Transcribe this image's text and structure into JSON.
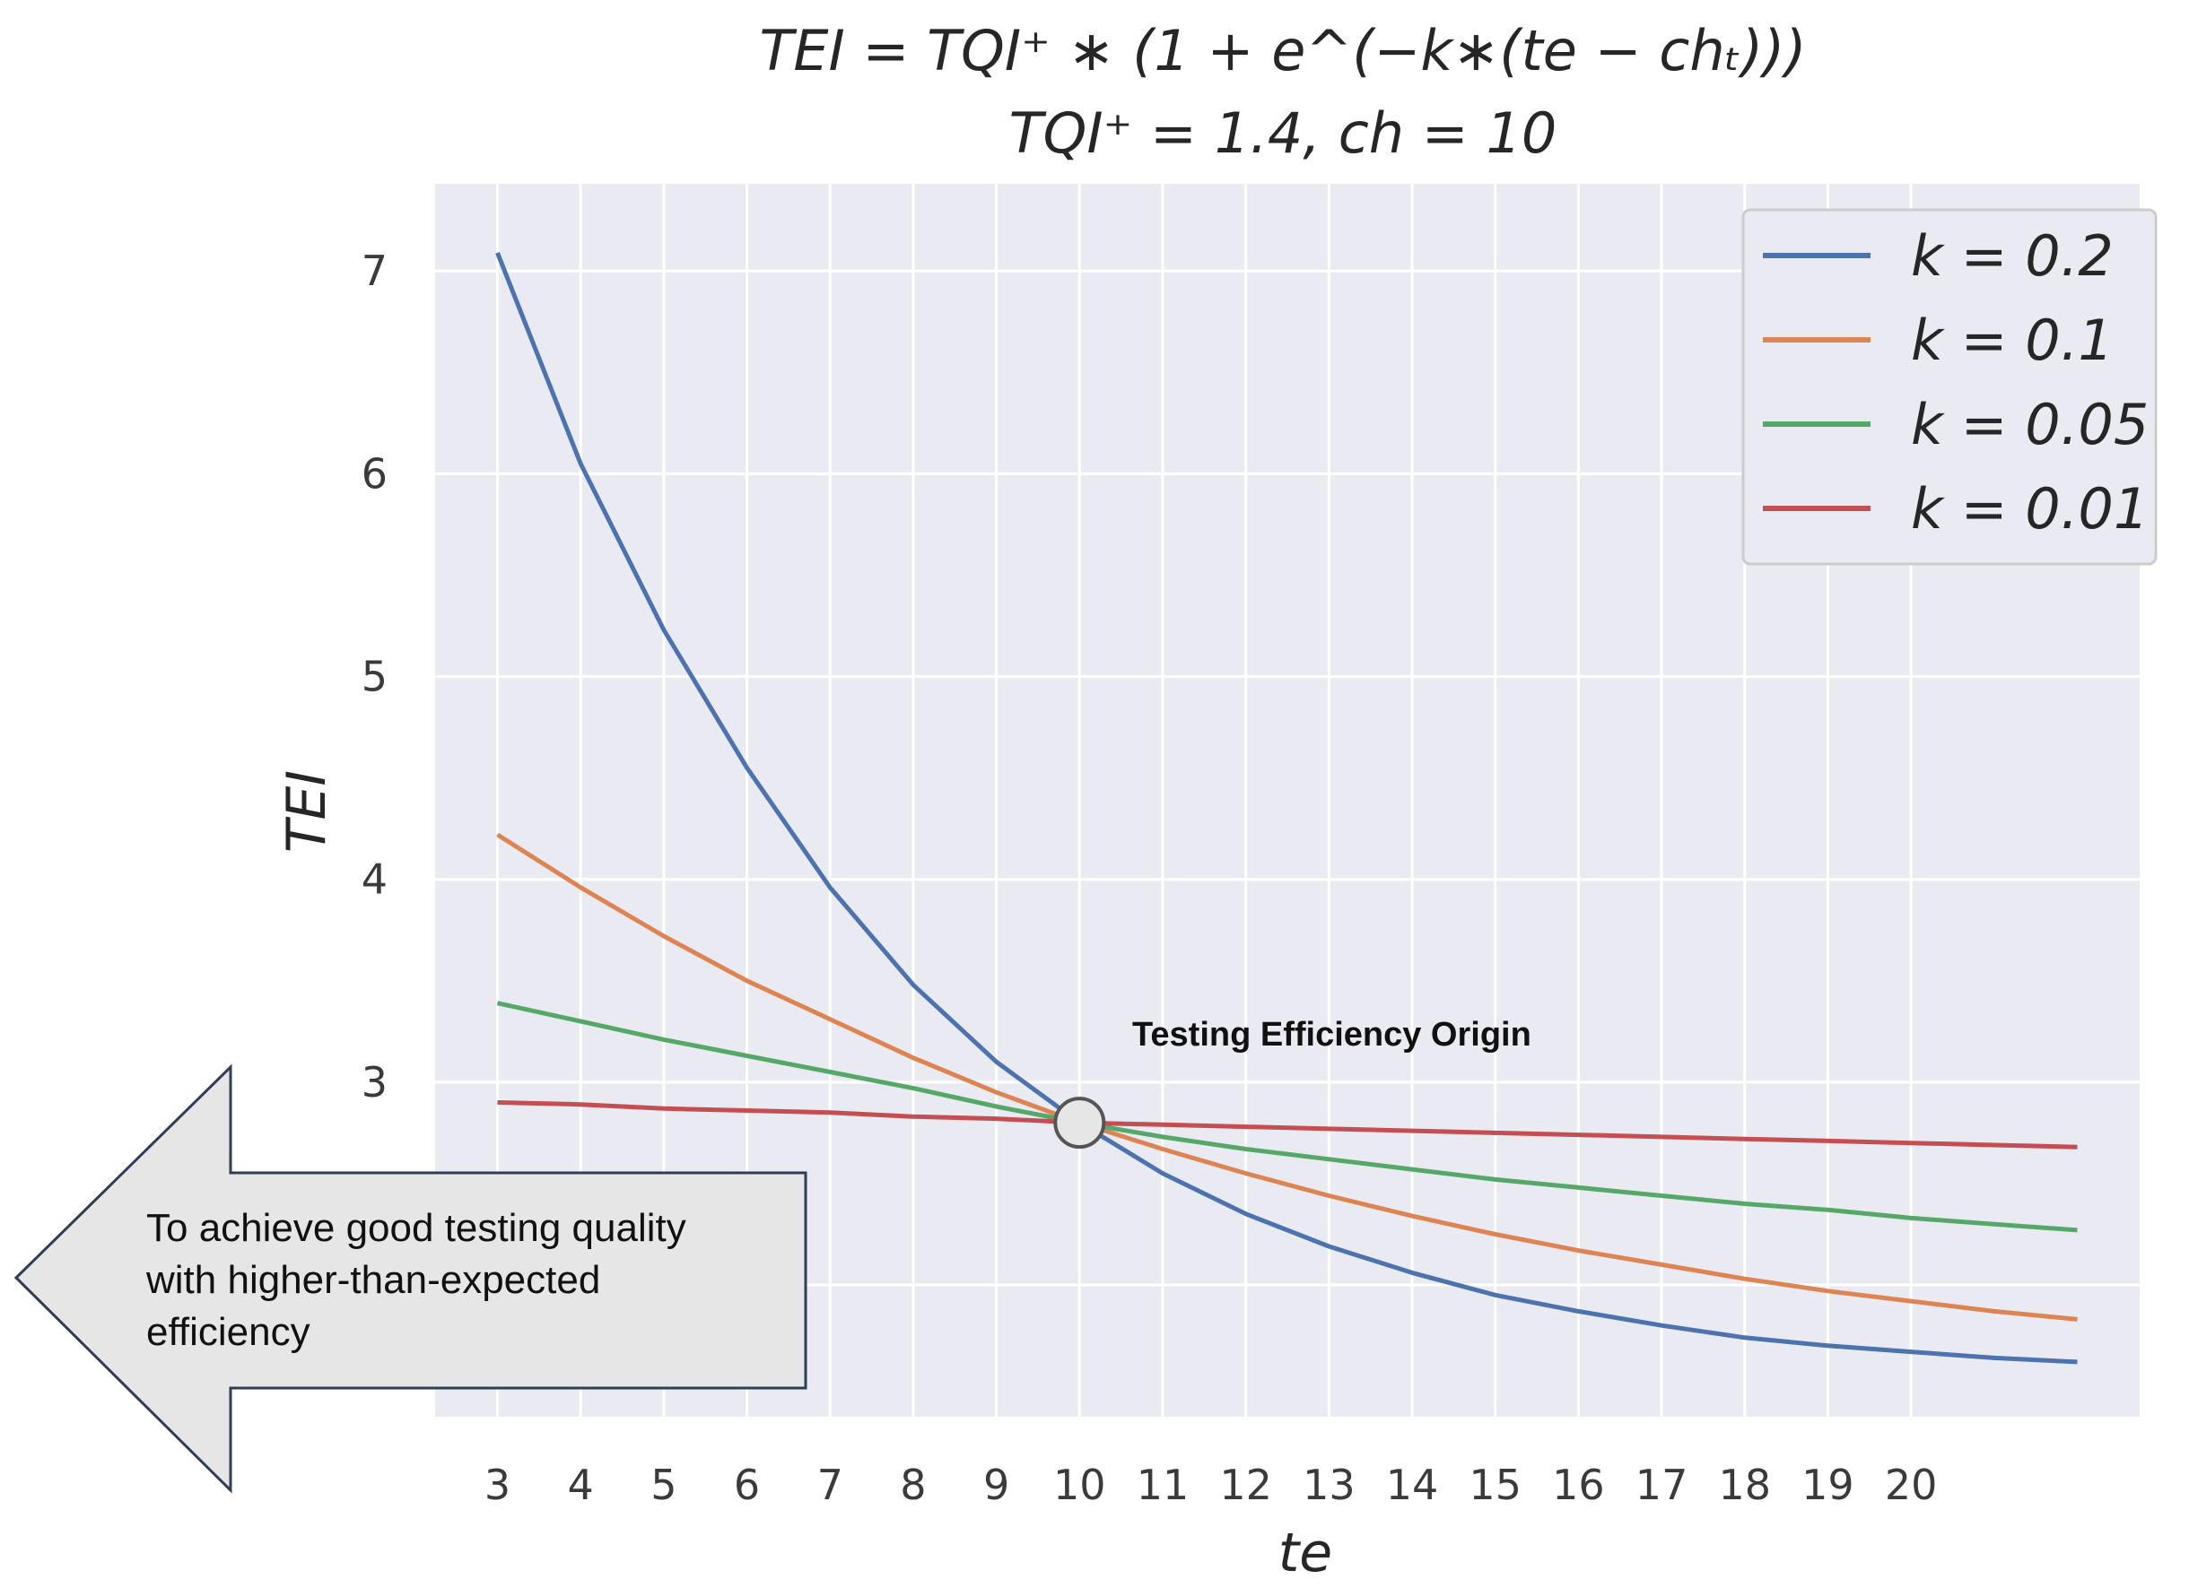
{
  "chart_data": {
    "type": "line",
    "title_line1": "TEI = TQI⁺ ∗ (1 + e^(−k∗(te − chₜ)))",
    "title_line2": "TQI⁺ = 1.4, ch = 10",
    "xlabel": "te",
    "ylabel": "TEI",
    "x_ticks": [
      3,
      4,
      5,
      6,
      7,
      8,
      9,
      10,
      11,
      12,
      13,
      14,
      15,
      16,
      17,
      18,
      19,
      20
    ],
    "y_ticks": [
      3,
      4,
      5,
      6,
      7
    ],
    "xlim": [
      2.25,
      22.75
    ],
    "ylim": [
      1.35,
      7.43
    ],
    "x": [
      3,
      4,
      5,
      6,
      7,
      8,
      9,
      10,
      11,
      12,
      13,
      14,
      15,
      16,
      17,
      18,
      19,
      20,
      21,
      22
    ],
    "series": [
      {
        "name": "k = 0.2",
        "color": "#4C72B0",
        "values": [
          7.09,
          6.05,
          5.23,
          4.55,
          3.96,
          3.48,
          3.1,
          2.8,
          2.55,
          2.35,
          2.19,
          2.06,
          1.95,
          1.87,
          1.8,
          1.74,
          1.7,
          1.67,
          1.64,
          1.62
        ]
      },
      {
        "name": "k = 0.1",
        "color": "#DD8452",
        "values": [
          4.22,
          3.96,
          3.72,
          3.5,
          3.31,
          3.12,
          2.95,
          2.8,
          2.67,
          2.55,
          2.44,
          2.34,
          2.25,
          2.17,
          2.1,
          2.03,
          1.97,
          1.92,
          1.87,
          1.83
        ]
      },
      {
        "name": "k = 0.05",
        "color": "#55A868",
        "values": [
          3.39,
          3.3,
          3.21,
          3.13,
          3.05,
          2.97,
          2.88,
          2.8,
          2.73,
          2.67,
          2.62,
          2.57,
          2.52,
          2.48,
          2.44,
          2.4,
          2.37,
          2.33,
          2.3,
          2.27
        ]
      },
      {
        "name": "k = 0.01",
        "color": "#C44E52",
        "values": [
          2.9,
          2.89,
          2.87,
          2.86,
          2.85,
          2.83,
          2.82,
          2.8,
          2.79,
          2.78,
          2.77,
          2.76,
          2.75,
          2.74,
          2.73,
          2.72,
          2.71,
          2.7,
          2.69,
          2.68
        ]
      }
    ],
    "legend_position": "top-right",
    "grid": true,
    "annotation": {
      "label": "Testing Efficiency Origin",
      "x": 10,
      "y": 2.8
    },
    "callout": {
      "lines": [
        "To achieve good testing quality",
        "with higher-than-expected",
        "efficiency"
      ],
      "direction": "left"
    }
  }
}
